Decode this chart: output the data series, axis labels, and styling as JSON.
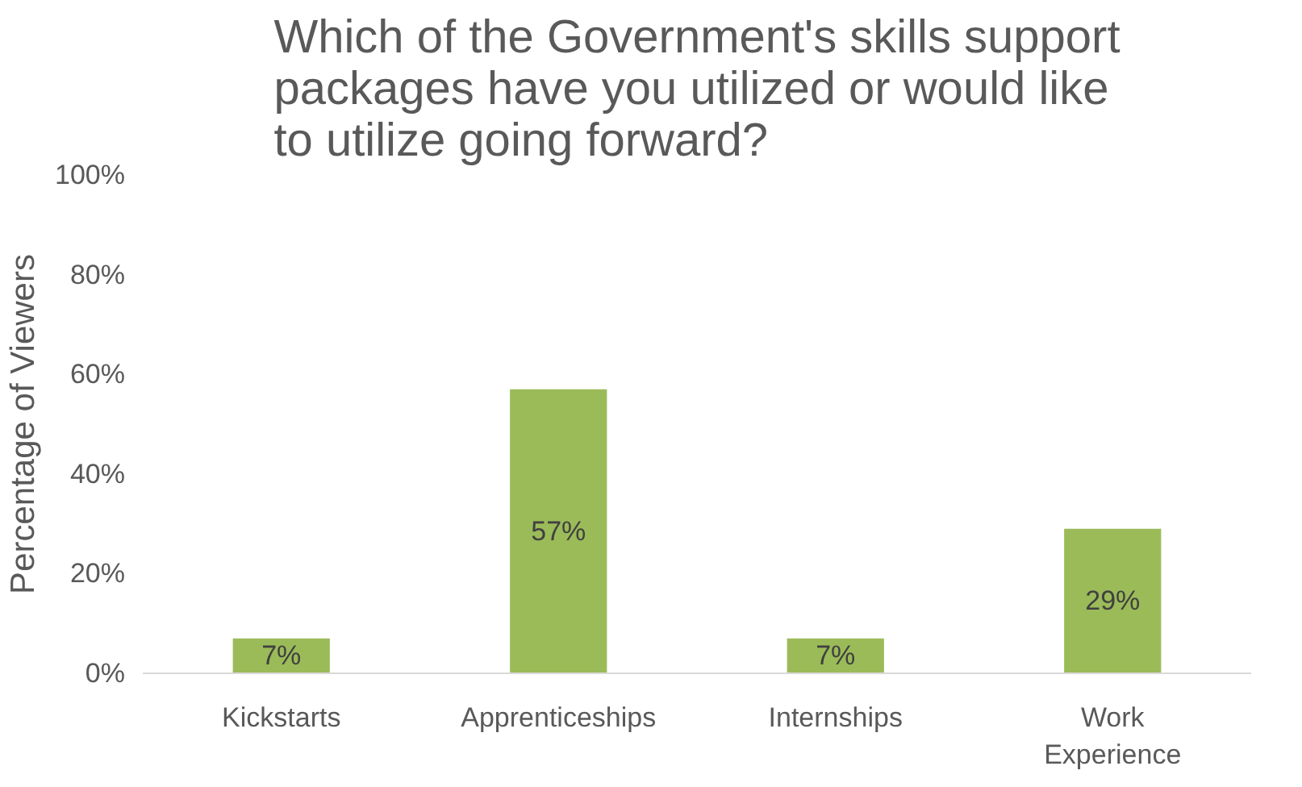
{
  "chart_data": {
    "type": "bar",
    "title": "Which of the Government's skills support packages have you utilized or would like to utilize going forward?",
    "ylabel": "Percentage of Viewers",
    "categories": [
      "Kickstarts",
      "Apprenticeships",
      "Internships",
      "Work\nExperience"
    ],
    "values": [
      7,
      57,
      7,
      29
    ],
    "color": "#9bbb59",
    "ylim": [
      0,
      100
    ],
    "yticks": [
      {
        "value": 0,
        "label": "0%"
      },
      {
        "value": 20,
        "label": "20%"
      },
      {
        "value": 40,
        "label": "40%"
      },
      {
        "value": 60,
        "label": "60%"
      },
      {
        "value": 80,
        "label": "80%"
      },
      {
        "value": 100,
        "label": "100%"
      }
    ],
    "value_labels": [
      "7%",
      "57%",
      "7%",
      "29%"
    ],
    "grid": false
  }
}
